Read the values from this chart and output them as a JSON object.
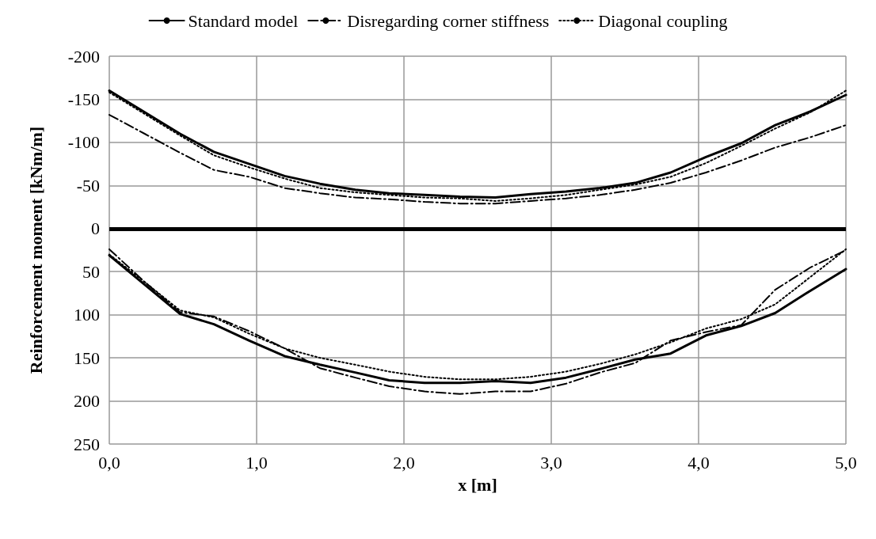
{
  "chart_data": {
    "type": "line",
    "xlabel": "x [m]",
    "ylabel": "Reinforcement moment [kNm/m]",
    "x": [
      0,
      0.24,
      0.48,
      0.71,
      0.95,
      1.19,
      1.43,
      1.67,
      1.9,
      2.14,
      2.38,
      2.62,
      2.86,
      3.1,
      3.33,
      3.57,
      3.81,
      4.05,
      4.29,
      4.52,
      4.76,
      5.0
    ],
    "series": [
      {
        "name": "Standard model",
        "color": "#000000",
        "line_style": "solid",
        "values": [
          -160,
          -135,
          -110,
          -89,
          -75,
          -61,
          -52,
          -45,
          -41,
          -39,
          -37,
          -36,
          -40,
          -43,
          -47,
          -53,
          -65,
          -83,
          -99,
          -120,
          -136,
          -155
        ]
      },
      {
        "name": "Disregarding corner stiffness",
        "color": "#000000",
        "line_style": "dashed",
        "values": [
          -132,
          -110,
          -88,
          -68,
          -60,
          -47,
          -41,
          -36,
          -34,
          -31,
          -29,
          -29,
          -32,
          -35,
          -39,
          -45,
          -53,
          -65,
          -79,
          -94,
          -106,
          -120
        ]
      },
      {
        "name": "Diagonal coupling",
        "color": "#000000",
        "line_style": "dotted",
        "values": [
          -158,
          -133,
          -108,
          -85,
          -71,
          -58,
          -47,
          -42,
          -39,
          -36,
          -35,
          -32,
          -35,
          -39,
          -45,
          -51,
          -60,
          -76,
          -96,
          -116,
          -135,
          -160
        ]
      },
      {
        "color": "#000000",
        "line_style": "solid",
        "values": [
          31,
          65,
          99,
          111,
          130,
          148,
          158,
          167,
          176,
          179,
          179,
          177,
          179,
          173,
          163,
          152,
          145,
          124,
          113,
          98,
          72,
          47
        ]
      },
      {
        "color": "#000000",
        "line_style": "dashed",
        "values": [
          24,
          62,
          97,
          102,
          119,
          139,
          162,
          173,
          183,
          189,
          192,
          189,
          189,
          180,
          167,
          156,
          130,
          120,
          112,
          71,
          45,
          25
        ]
      },
      {
        "color": "#000000",
        "line_style": "dotted",
        "values": [
          30,
          62,
          95,
          103,
          122,
          139,
          150,
          158,
          166,
          172,
          175,
          175,
          172,
          166,
          157,
          146,
          132,
          116,
          105,
          88,
          56,
          24
        ]
      }
    ],
    "xlim": [
      0,
      5
    ],
    "xticks": [
      {
        "value": 0,
        "label": "0,0"
      },
      {
        "value": 1,
        "label": "1,0"
      },
      {
        "value": 2,
        "label": "2,0"
      },
      {
        "value": 3,
        "label": "3,0"
      },
      {
        "value": 4,
        "label": "4,0"
      },
      {
        "value": 5,
        "label": "5,0"
      }
    ],
    "ylim": [
      250,
      -200
    ],
    "yticks": [
      -200,
      -150,
      -100,
      -50,
      0,
      50,
      100,
      150,
      200,
      250
    ],
    "ref_lines": [
      {
        "axis": "y",
        "value": 0,
        "color": "#000000"
      }
    ],
    "grid": true,
    "legend": "top",
    "marker": "none"
  }
}
